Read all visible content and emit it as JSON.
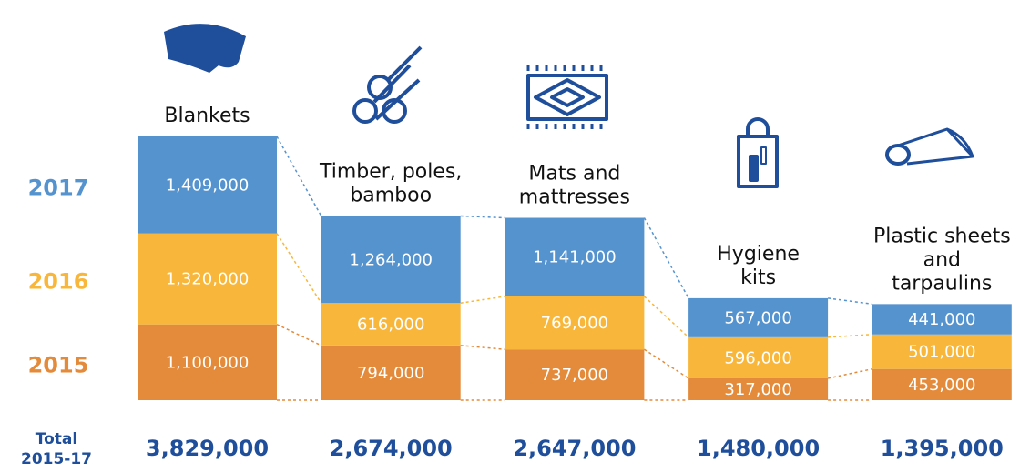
{
  "chart_data": {
    "type": "stacked_bar",
    "categories": [
      [
        "Blankets"
      ],
      [
        "Timber, poles,",
        "bamboo"
      ],
      [
        "Mats and",
        "mattresses"
      ],
      [
        "Hygiene",
        "kits"
      ],
      [
        "Plastic sheets",
        "and",
        "tarpaulins"
      ]
    ],
    "series": [
      {
        "name": "2015",
        "color": "#e48b3b",
        "values": [
          1100000,
          794000,
          737000,
          317000,
          453000
        ],
        "value_labels": [
          "1,100,000",
          "794,000",
          "737,000",
          "317,000",
          "453,000"
        ]
      },
      {
        "name": "2016",
        "color": "#f8b73a",
        "values": [
          1320000,
          616000,
          769000,
          596000,
          501000
        ],
        "value_labels": [
          "1,320,000",
          "616,000",
          "769,000",
          "596,000",
          "501,000"
        ]
      },
      {
        "name": "2017",
        "color": "#5593cf",
        "values": [
          1409000,
          1264000,
          1141000,
          567000,
          441000
        ],
        "value_labels": [
          "1,409,000",
          "1,264,000",
          "1,141,000",
          "567,000",
          "441,000"
        ]
      }
    ],
    "total_title": [
      "Total",
      "2015-17"
    ],
    "totals": [
      "3,829,000",
      "2,674,000",
      "2,647,000",
      "1,480,000",
      "1,395,000"
    ]
  }
}
